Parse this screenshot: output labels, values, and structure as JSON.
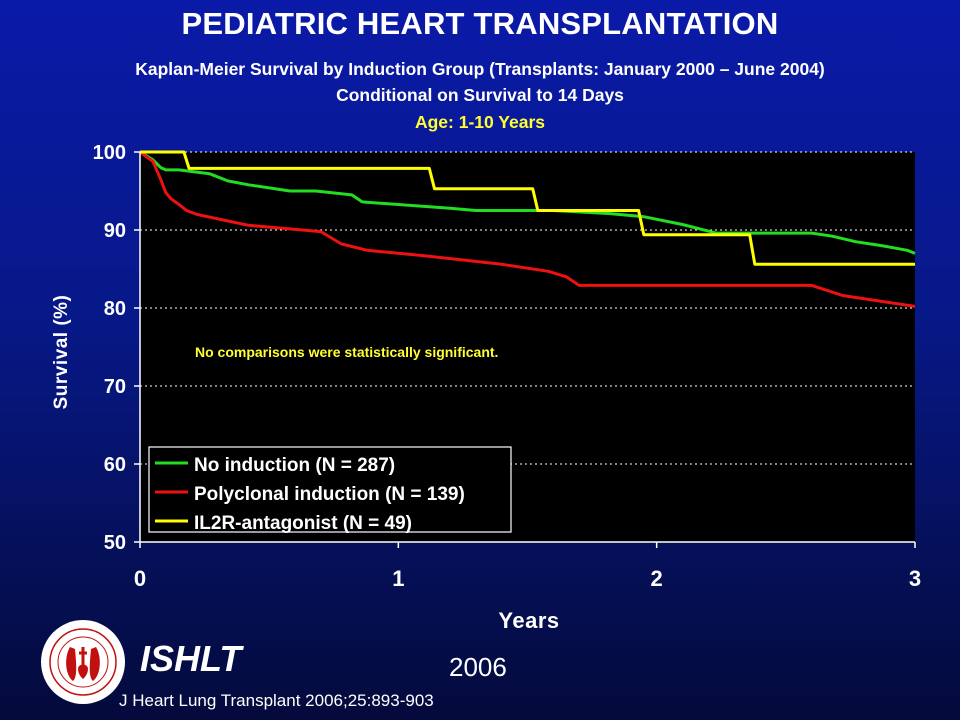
{
  "header": {
    "title": "PEDIATRIC HEART TRANSPLANTATION",
    "subtitle_line1": "Kaplan-Meier Survival by Induction Group (Transplants: January 2000 – June 2004)",
    "subtitle_line2": "Conditional on Survival to 14 Days",
    "subtitle_line3": "Age: 1-10 Years"
  },
  "footer": {
    "organization": "ISHLT",
    "year": "2006",
    "citation": "J Heart Lung Transplant 2006;25:893-903"
  },
  "chart_data": {
    "type": "line",
    "xlabel": "Years",
    "ylabel": "Survival (%)",
    "xlim": [
      0,
      3
    ],
    "ylim": [
      50,
      100
    ],
    "xticks": [
      "0",
      "1",
      "2",
      "3"
    ],
    "yticks": [
      "50",
      "60",
      "70",
      "80",
      "90",
      "100"
    ],
    "grid": "horizontal dotted",
    "legend_placement": "bottom-left",
    "annotation": "No comparisons were statistically significant.",
    "colors": {
      "green": "#22dd22",
      "red": "#ee1111",
      "yellow": "#ffff00"
    },
    "series": [
      {
        "name": "No induction (N = 287)",
        "color": "#22dd22",
        "x": [
          0,
          0.05,
          0.08,
          0.1,
          0.15,
          0.27,
          0.34,
          0.42,
          0.5,
          0.58,
          0.68,
          0.82,
          0.86,
          1.2,
          1.3,
          1.6,
          1.82,
          1.95,
          2.1,
          2.23,
          2.6,
          2.68,
          2.77,
          2.87,
          2.97,
          3.0
        ],
        "y": [
          100,
          99.0,
          98.0,
          97.7,
          97.7,
          97.2,
          96.3,
          95.8,
          95.4,
          95.0,
          95.0,
          94.5,
          93.6,
          92.8,
          92.5,
          92.5,
          92.1,
          91.7,
          90.7,
          89.6,
          89.6,
          89.2,
          88.5,
          88.0,
          87.4,
          87.0
        ]
      },
      {
        "name": "Polyclonal induction (N = 139)",
        "color": "#ee1111",
        "x": [
          0,
          0.05,
          0.08,
          0.1,
          0.12,
          0.15,
          0.18,
          0.22,
          0.32,
          0.42,
          0.7,
          0.78,
          0.88,
          1.1,
          1.4,
          1.58,
          1.65,
          1.7,
          2.6,
          2.72,
          3.0
        ],
        "y": [
          100,
          98.8,
          96.5,
          94.8,
          94.0,
          93.3,
          92.5,
          92.0,
          91.3,
          90.6,
          89.8,
          88.2,
          87.4,
          86.7,
          85.6,
          84.7,
          84.0,
          82.9,
          82.9,
          81.6,
          80.2
        ]
      },
      {
        "name": "IL2R-antagonist (N = 49)",
        "color": "#ffff00",
        "x": [
          0,
          0.17,
          0.19,
          1.12,
          1.14,
          1.52,
          1.54,
          1.93,
          1.95,
          2.36,
          2.38,
          3.0
        ],
        "y": [
          100,
          100,
          97.9,
          97.9,
          95.3,
          95.3,
          92.5,
          92.5,
          89.4,
          89.4,
          85.6,
          85.6
        ]
      }
    ]
  }
}
